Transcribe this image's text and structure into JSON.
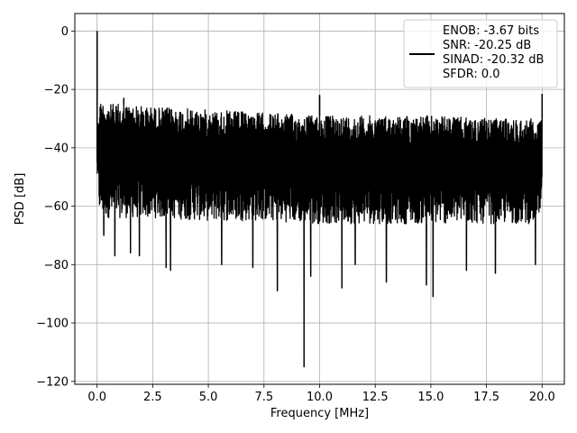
{
  "chart_data": {
    "type": "line",
    "title": "",
    "xlabel": "Frequency [MHz]",
    "ylabel": "PSD [dB]",
    "xlim": [
      -1.0,
      21.0
    ],
    "ylim": [
      -121.0,
      6.0
    ],
    "x_ticks": [
      0.0,
      2.5,
      5.0,
      7.5,
      10.0,
      12.5,
      15.0,
      17.5,
      20.0
    ],
    "x_tick_labels": [
      "0.0",
      "2.5",
      "5.0",
      "7.5",
      "10.0",
      "12.5",
      "15.0",
      "17.5",
      "20.0"
    ],
    "y_ticks": [
      0,
      -20,
      -40,
      -60,
      -80,
      -100,
      -120
    ],
    "y_tick_labels": [
      "0",
      "−20",
      "−40",
      "−60",
      "−80",
      "−100",
      "−120"
    ],
    "grid": true,
    "legend_position": "top-right",
    "legend": [
      "ENOB: -3.67 bits",
      "SNR: -20.25 dB",
      "SINAD: -20.32 dB",
      "SFDR: 0.0"
    ],
    "series_color": "#000000",
    "x_range": [
      0.0,
      20.0
    ],
    "series": [
      {
        "name": "ENOB: -3.67 bits\nSNR: -20.25 dB\nSINAD: -20.32 dB\nSFDR: 0.0",
        "envelope": {
          "x": [
            0.0,
            0.05,
            0.1,
            0.2,
            0.5,
            1.0,
            2.5,
            5.0,
            7.5,
            10.0,
            12.5,
            15.0,
            17.5,
            19.9,
            20.0
          ],
          "upper": [
            -45,
            -30,
            -24,
            -24,
            -25,
            -25,
            -26,
            -27,
            -28,
            -29,
            -29,
            -29,
            -30,
            -30,
            -30
          ],
          "lower": [
            -52,
            -58,
            -62,
            -63,
            -64,
            -64,
            -64,
            -65,
            -65,
            -66,
            -66,
            -66,
            -66,
            -66,
            -62
          ]
        },
        "spikes": [
          {
            "x": 0.0,
            "y": 0.0
          },
          {
            "x": 1.2,
            "y": -23.0
          },
          {
            "x": 10.0,
            "y": -22.0
          },
          {
            "x": 20.0,
            "y": -21.5
          }
        ],
        "dips": [
          {
            "x": 0.3,
            "y": -70
          },
          {
            "x": 0.8,
            "y": -77
          },
          {
            "x": 1.5,
            "y": -76
          },
          {
            "x": 1.9,
            "y": -77
          },
          {
            "x": 3.1,
            "y": -81
          },
          {
            "x": 3.3,
            "y": -82
          },
          {
            "x": 5.6,
            "y": -80
          },
          {
            "x": 7.0,
            "y": -81
          },
          {
            "x": 8.1,
            "y": -89
          },
          {
            "x": 9.3,
            "y": -115
          },
          {
            "x": 9.6,
            "y": -84
          },
          {
            "x": 11.0,
            "y": -88
          },
          {
            "x": 11.6,
            "y": -80
          },
          {
            "x": 13.0,
            "y": -86
          },
          {
            "x": 14.8,
            "y": -87
          },
          {
            "x": 15.1,
            "y": -91
          },
          {
            "x": 16.6,
            "y": -82
          },
          {
            "x": 17.9,
            "y": -83
          },
          {
            "x": 19.7,
            "y": -80
          }
        ]
      }
    ]
  }
}
